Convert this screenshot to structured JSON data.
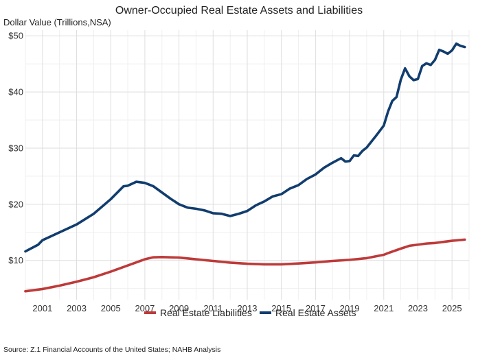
{
  "chart_data": {
    "type": "line",
    "title": "Owner-Occupied Real Estate Assets and Liabilities",
    "ylabel": "Dollar Value (Trillions,NSA)",
    "xlabel": "",
    "xlim": [
      2000,
      2026
    ],
    "ylim": [
      3,
      51
    ],
    "x_ticks": [
      2001,
      2003,
      2005,
      2007,
      2009,
      2011,
      2013,
      2015,
      2017,
      2019,
      2021,
      2023,
      2025
    ],
    "x_tick_labels": [
      "2001",
      "2003",
      "2005",
      "2007",
      "2009",
      "2011",
      "2013",
      "2015",
      "2017",
      "2019",
      "2021",
      "2023",
      "2025"
    ],
    "y_ticks": [
      10,
      20,
      30,
      40,
      50
    ],
    "y_tick_labels": [
      "$10",
      "$20",
      "$30",
      "$40",
      "$50"
    ],
    "grid": true,
    "legend_position": "bottom",
    "series": [
      {
        "name": "Real Estate Liabilities",
        "color": "#be3a3a",
        "x": [
          2000.0,
          2001.0,
          2002.0,
          2003.0,
          2004.0,
          2005.0,
          2006.0,
          2007.0,
          2007.5,
          2008.0,
          2009.0,
          2010.0,
          2011.0,
          2012.0,
          2013.0,
          2014.0,
          2015.0,
          2016.0,
          2017.0,
          2018.0,
          2019.0,
          2020.0,
          2021.0,
          2021.25,
          2022.0,
          2022.5,
          2023.0,
          2023.5,
          2024.0,
          2024.5,
          2025.0,
          2025.75
        ],
        "y": [
          4.5,
          4.9,
          5.5,
          6.2,
          7.0,
          8.0,
          9.1,
          10.2,
          10.55,
          10.6,
          10.5,
          10.2,
          9.9,
          9.6,
          9.4,
          9.3,
          9.3,
          9.45,
          9.65,
          9.9,
          10.1,
          10.4,
          11.0,
          11.3,
          12.1,
          12.6,
          12.8,
          13.0,
          13.1,
          13.3,
          13.5,
          13.7
        ]
      },
      {
        "name": "Real Estate Assets",
        "color": "#113d6e",
        "x": [
          2000.0,
          2000.75,
          2001.0,
          2002.0,
          2003.0,
          2004.0,
          2005.0,
          2005.75,
          2006.0,
          2006.5,
          2007.0,
          2007.5,
          2008.0,
          2008.5,
          2009.0,
          2009.5,
          2010.0,
          2010.5,
          2011.0,
          2011.5,
          2012.0,
          2012.5,
          2013.0,
          2013.5,
          2014.0,
          2014.5,
          2015.0,
          2015.5,
          2016.0,
          2016.5,
          2017.0,
          2017.5,
          2018.0,
          2018.25,
          2018.5,
          2018.75,
          2019.0,
          2019.25,
          2019.5,
          2019.75,
          2020.0,
          2020.5,
          2021.0,
          2021.25,
          2021.5,
          2021.75,
          2022.0,
          2022.25,
          2022.5,
          2022.75,
          2023.0,
          2023.25,
          2023.5,
          2023.75,
          2024.0,
          2024.25,
          2024.5,
          2024.75,
          2025.0,
          2025.25,
          2025.5,
          2025.75
        ],
        "y": [
          11.6,
          12.8,
          13.6,
          15.0,
          16.4,
          18.3,
          20.9,
          23.2,
          23.3,
          24.0,
          23.8,
          23.2,
          22.1,
          21.0,
          20.0,
          19.4,
          19.2,
          18.9,
          18.4,
          18.3,
          17.9,
          18.3,
          18.8,
          19.8,
          20.5,
          21.4,
          21.8,
          22.8,
          23.4,
          24.5,
          25.3,
          26.5,
          27.4,
          27.8,
          28.2,
          27.6,
          27.7,
          28.7,
          28.6,
          29.5,
          30.1,
          32.0,
          34.0,
          36.5,
          38.4,
          39.1,
          42.2,
          44.2,
          42.8,
          42.1,
          42.3,
          44.6,
          45.1,
          44.8,
          45.7,
          47.5,
          47.2,
          46.8,
          47.4,
          48.6,
          48.2,
          48.0
        ]
      }
    ],
    "source": "Source: Z.1 Financial Accounts of the United States; NAHB Analysis"
  }
}
